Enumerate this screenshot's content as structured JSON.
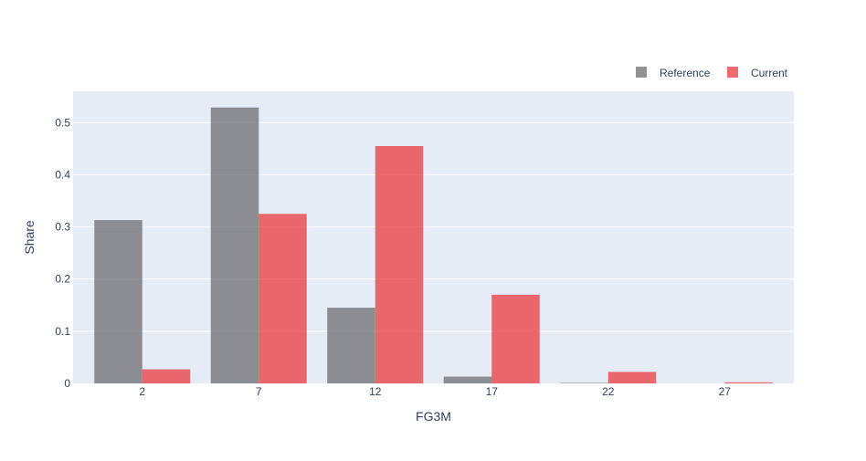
{
  "chart_data": {
    "type": "bar",
    "title": "",
    "xlabel": "FG3M",
    "ylabel": "Share",
    "categories": [
      "2",
      "7",
      "12",
      "17",
      "22",
      "27"
    ],
    "series": [
      {
        "name": "Reference",
        "values": [
          0.313,
          0.529,
          0.145,
          0.013,
          0.001,
          0.0
        ],
        "color": "#6d6e71"
      },
      {
        "name": "Current",
        "values": [
          0.027,
          0.325,
          0.455,
          0.17,
          0.022,
          0.002
        ],
        "color": "#ea3a3e"
      }
    ],
    "ylim": [
      0,
      0.56
    ],
    "yticks": [
      0,
      0.1,
      0.2,
      0.3,
      0.4,
      0.5
    ],
    "ytick_labels": [
      "0",
      "0.1",
      "0.2",
      "0.3",
      "0.4",
      "0.5"
    ],
    "grid": true,
    "legend": "top-right",
    "background_color": "#e5ecf6",
    "grid_color": "#ffffff"
  }
}
